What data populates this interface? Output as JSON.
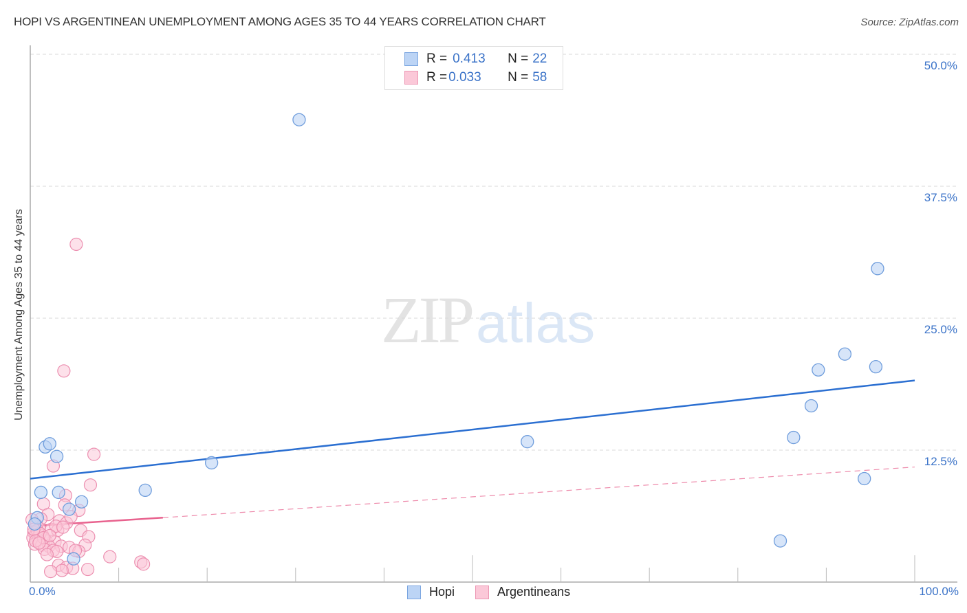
{
  "header": {
    "title": "HOPI VS ARGENTINEAN UNEMPLOYMENT AMONG AGES 35 TO 44 YEARS CORRELATION CHART",
    "source": "Source: ZipAtlas.com"
  },
  "watermark": {
    "zip": "ZIP",
    "atlas": "atlas"
  },
  "legend_top": {
    "rows": [
      {
        "r_label": "R = ",
        "r_value": "0.413",
        "n_label": "N = ",
        "n_value": "22",
        "color": "#bcd4f5"
      },
      {
        "r_label": "R = ",
        "r_value": "0.033",
        "n_label": "N = ",
        "n_value": "58",
        "color": "#fbc8d8"
      }
    ]
  },
  "legend_bottom": {
    "items": [
      {
        "label": "Hopi"
      },
      {
        "label": "Argentineans"
      }
    ]
  },
  "axes": {
    "ylabel": "Unemployment Among Ages 35 to 44 years",
    "yticks": [
      "50.0%",
      "37.5%",
      "25.0%",
      "12.5%"
    ],
    "xticks": {
      "left": "0.0%",
      "right": "100.0%"
    }
  },
  "colors": {
    "hopi_fill": "#bcd4f5",
    "hopi_stroke": "#6f9ddc",
    "hopi_line": "#2b6fd1",
    "arg_fill": "#fbc8d8",
    "arg_stroke": "#ec8fb0",
    "arg_line": "#e8628e",
    "tick_text": "#3b73c8"
  },
  "chart_data": {
    "type": "scatter",
    "title": "HOPI VS ARGENTINEAN UNEMPLOYMENT AMONG AGES 35 TO 44 YEARS CORRELATION CHART",
    "xlabel": "",
    "ylabel": "Unemployment Among Ages 35 to 44 years",
    "xlim": [
      0,
      100
    ],
    "ylim": [
      0,
      50
    ],
    "x_unit": "%",
    "y_unit": "%",
    "yticks": [
      12.5,
      25.0,
      37.5,
      50.0
    ],
    "grid": "horizontal dashed",
    "legend_position": "top-center and bottom-center",
    "series": [
      {
        "name": "Hopi",
        "R": 0.413,
        "N": 22,
        "trend": {
          "x": [
            0,
            100
          ],
          "y": [
            9.8,
            19.1
          ],
          "style": "solid"
        },
        "points": [
          [
            30.4,
            43.8
          ],
          [
            95.8,
            29.7
          ],
          [
            92.1,
            21.6
          ],
          [
            89.1,
            20.1
          ],
          [
            95.6,
            20.4
          ],
          [
            88.3,
            16.7
          ],
          [
            86.3,
            13.7
          ],
          [
            56.2,
            13.3
          ],
          [
            20.5,
            11.3
          ],
          [
            94.3,
            9.8
          ],
          [
            84.8,
            3.9
          ],
          [
            1.7,
            12.8
          ],
          [
            2.2,
            13.1
          ],
          [
            3.0,
            11.9
          ],
          [
            1.2,
            8.5
          ],
          [
            3.2,
            8.5
          ],
          [
            13.0,
            8.7
          ],
          [
            5.8,
            7.6
          ],
          [
            4.4,
            6.9
          ],
          [
            0.8,
            6.1
          ],
          [
            4.9,
            2.2
          ],
          [
            0.5,
            5.5
          ]
        ]
      },
      {
        "name": "Argentineans",
        "R": 0.033,
        "N": 58,
        "trend": {
          "x": [
            0,
            15,
            100
          ],
          "y": [
            5.3,
            6.1,
            10.9
          ],
          "style": "solid to x=15, dashed beyond"
        },
        "points": [
          [
            5.2,
            32.0
          ],
          [
            3.8,
            20.0
          ],
          [
            7.2,
            12.1
          ],
          [
            2.6,
            11.0
          ],
          [
            6.8,
            9.2
          ],
          [
            4.0,
            8.2
          ],
          [
            1.5,
            7.4
          ],
          [
            3.9,
            7.3
          ],
          [
            5.5,
            6.8
          ],
          [
            2.0,
            6.4
          ],
          [
            1.2,
            6.0
          ],
          [
            3.3,
            5.8
          ],
          [
            4.1,
            5.6
          ],
          [
            0.7,
            5.4
          ],
          [
            1.0,
            5.1
          ],
          [
            2.4,
            5.0
          ],
          [
            3.1,
            4.9
          ],
          [
            0.4,
            4.7
          ],
          [
            0.6,
            4.5
          ],
          [
            1.4,
            4.4
          ],
          [
            0.3,
            4.2
          ],
          [
            0.9,
            4.0
          ],
          [
            1.8,
            3.9
          ],
          [
            2.8,
            3.8
          ],
          [
            5.7,
            4.9
          ],
          [
            6.6,
            4.3
          ],
          [
            0.5,
            3.6
          ],
          [
            1.3,
            3.5
          ],
          [
            2.1,
            3.4
          ],
          [
            3.5,
            3.4
          ],
          [
            4.4,
            3.3
          ],
          [
            6.2,
            3.5
          ],
          [
            1.6,
            3.1
          ],
          [
            2.6,
            3.0
          ],
          [
            3.0,
            2.9
          ],
          [
            5.5,
            2.9
          ],
          [
            1.9,
            2.6
          ],
          [
            9.0,
            2.4
          ],
          [
            12.5,
            1.9
          ],
          [
            12.8,
            1.7
          ],
          [
            3.2,
            1.6
          ],
          [
            4.1,
            1.4
          ],
          [
            6.5,
            1.2
          ],
          [
            4.8,
            1.3
          ],
          [
            3.6,
            1.1
          ],
          [
            2.3,
            1.0
          ],
          [
            0.2,
            5.9
          ],
          [
            0.8,
            4.9
          ],
          [
            1.1,
            4.6
          ],
          [
            2.9,
            5.3
          ],
          [
            4.6,
            6.2
          ],
          [
            0.4,
            5.0
          ],
          [
            1.5,
            4.2
          ],
          [
            2.2,
            4.4
          ],
          [
            3.7,
            5.2
          ],
          [
            0.6,
            3.9
          ],
          [
            1.0,
            3.7
          ],
          [
            5.1,
            3.0
          ]
        ]
      }
    ]
  }
}
